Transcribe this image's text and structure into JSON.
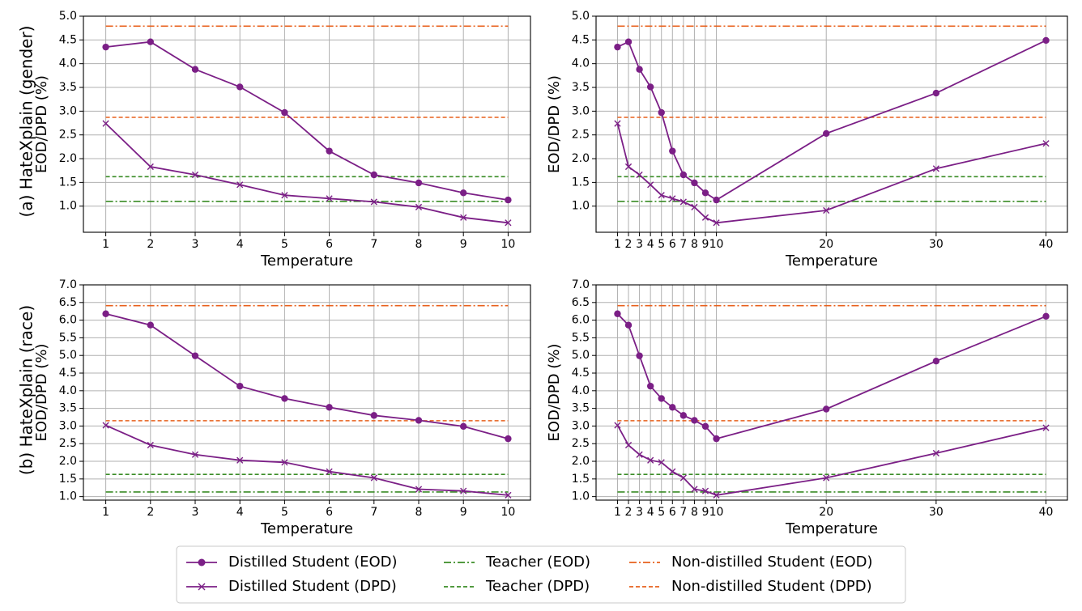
{
  "row_labels": [
    "(a) HateXplain (gender)",
    "(b) HateXplain (race)"
  ],
  "colors": {
    "student": "#7b1f86",
    "teacher": "#3a8c26",
    "nondistilled": "#e8601c"
  },
  "legend": [
    {
      "label": "Distilled Student (EOD)",
      "style": "student-eod"
    },
    {
      "label": "Distilled Student (DPD)",
      "style": "student-dpd"
    },
    {
      "label": "Teacher (EOD)",
      "style": "teacher-eod"
    },
    {
      "label": "Teacher (DPD)",
      "style": "teacher-dpd"
    },
    {
      "label": "Non-distilled Student (EOD)",
      "style": "nondistilled-eod"
    },
    {
      "label": "Non-distilled Student (DPD)",
      "style": "nondistilled-dpd"
    }
  ],
  "chart_data": [
    {
      "type": "line",
      "panel": "a-left",
      "xlabel": "Temperature",
      "ylabel": "EOD/DPD (%)",
      "xticks": [
        1,
        2,
        3,
        4,
        5,
        6,
        7,
        8,
        9,
        10
      ],
      "xlim": [
        0.5,
        10.5
      ],
      "ylim": [
        0.45,
        5.0
      ],
      "yticks": [
        1.0,
        1.5,
        2.0,
        2.5,
        3.0,
        3.5,
        4.0,
        4.5,
        5.0
      ],
      "grid": true,
      "x": [
        1,
        2,
        3,
        4,
        5,
        6,
        7,
        8,
        9,
        10
      ],
      "series": [
        {
          "name": "Distilled Student (EOD)",
          "values": [
            4.35,
            4.46,
            3.88,
            3.51,
            2.97,
            2.16,
            1.66,
            1.49,
            1.28,
            1.13
          ]
        },
        {
          "name": "Distilled Student (DPD)",
          "values": [
            2.74,
            1.83,
            1.66,
            1.45,
            1.23,
            1.16,
            1.09,
            0.98,
            0.76,
            0.65
          ]
        }
      ],
      "hlines": [
        {
          "name": "Teacher (EOD)",
          "value": 1.1
        },
        {
          "name": "Teacher (DPD)",
          "value": 1.62
        },
        {
          "name": "Non-distilled Student (EOD)",
          "value": 4.79
        },
        {
          "name": "Non-distilled Student (DPD)",
          "value": 2.87
        }
      ]
    },
    {
      "type": "line",
      "panel": "a-right",
      "xlabel": "Temperature",
      "ylabel": "EOD/DPD (%)",
      "xticks": [
        1,
        2,
        3,
        4,
        5,
        6,
        7,
        8,
        9,
        10,
        20,
        30,
        40
      ],
      "xlim": [
        -0.95,
        41.95
      ],
      "ylim": [
        0.45,
        5.0
      ],
      "yticks": [
        1.0,
        1.5,
        2.0,
        2.5,
        3.0,
        3.5,
        4.0,
        4.5,
        5.0
      ],
      "grid": true,
      "x": [
        1,
        2,
        3,
        4,
        5,
        6,
        7,
        8,
        9,
        10,
        20,
        30,
        40
      ],
      "series": [
        {
          "name": "Distilled Student (EOD)",
          "values": [
            4.35,
            4.46,
            3.88,
            3.51,
            2.97,
            2.16,
            1.66,
            1.49,
            1.28,
            1.13,
            2.53,
            3.38,
            4.49
          ]
        },
        {
          "name": "Distilled Student (DPD)",
          "values": [
            2.74,
            1.83,
            1.66,
            1.45,
            1.23,
            1.16,
            1.09,
            0.98,
            0.76,
            0.65,
            0.91,
            1.79,
            2.32
          ]
        }
      ],
      "hlines": [
        {
          "name": "Teacher (EOD)",
          "value": 1.1
        },
        {
          "name": "Teacher (DPD)",
          "value": 1.62
        },
        {
          "name": "Non-distilled Student (EOD)",
          "value": 4.79
        },
        {
          "name": "Non-distilled Student (DPD)",
          "value": 2.87
        }
      ]
    },
    {
      "type": "line",
      "panel": "b-left",
      "xlabel": "Temperature",
      "ylabel": "EOD/DPD (%)",
      "xticks": [
        1,
        2,
        3,
        4,
        5,
        6,
        7,
        8,
        9,
        10
      ],
      "xlim": [
        0.5,
        10.5
      ],
      "ylim": [
        0.9,
        7.0
      ],
      "yticks": [
        1.0,
        1.5,
        2.0,
        2.5,
        3.0,
        3.5,
        4.0,
        4.5,
        5.0,
        5.5,
        6.0,
        6.5,
        7.0
      ],
      "grid": true,
      "x": [
        1,
        2,
        3,
        4,
        5,
        6,
        7,
        8,
        9,
        10
      ],
      "series": [
        {
          "name": "Distilled Student (EOD)",
          "values": [
            6.18,
            5.86,
            4.99,
            4.13,
            3.78,
            3.53,
            3.3,
            3.16,
            2.99,
            2.64
          ]
        },
        {
          "name": "Distilled Student (DPD)",
          "values": [
            3.02,
            2.46,
            2.19,
            2.03,
            1.97,
            1.71,
            1.53,
            1.21,
            1.16,
            1.04
          ]
        }
      ],
      "hlines": [
        {
          "name": "Teacher (EOD)",
          "value": 1.13
        },
        {
          "name": "Teacher (DPD)",
          "value": 1.63
        },
        {
          "name": "Non-distilled Student (EOD)",
          "value": 6.41
        },
        {
          "name": "Non-distilled Student (DPD)",
          "value": 3.15
        }
      ]
    },
    {
      "type": "line",
      "panel": "b-right",
      "xlabel": "Temperature",
      "ylabel": "EOD/DPD (%)",
      "xticks": [
        1,
        2,
        3,
        4,
        5,
        6,
        7,
        8,
        9,
        10,
        20,
        30,
        40
      ],
      "xlim": [
        -0.95,
        41.95
      ],
      "ylim": [
        0.9,
        7.0
      ],
      "yticks": [
        1.0,
        1.5,
        2.0,
        2.5,
        3.0,
        3.5,
        4.0,
        4.5,
        5.0,
        5.5,
        6.0,
        6.5,
        7.0
      ],
      "grid": true,
      "x": [
        1,
        2,
        3,
        4,
        5,
        6,
        7,
        8,
        9,
        10,
        20,
        30,
        40
      ],
      "series": [
        {
          "name": "Distilled Student (EOD)",
          "values": [
            6.18,
            5.86,
            4.99,
            4.13,
            3.78,
            3.53,
            3.3,
            3.16,
            2.99,
            2.64,
            3.48,
            4.84,
            6.11
          ]
        },
        {
          "name": "Distilled Student (DPD)",
          "values": [
            3.02,
            2.46,
            2.19,
            2.03,
            1.97,
            1.71,
            1.53,
            1.21,
            1.16,
            1.04,
            1.53,
            2.23,
            2.95
          ]
        }
      ],
      "hlines": [
        {
          "name": "Teacher (EOD)",
          "value": 1.13
        },
        {
          "name": "Teacher (DPD)",
          "value": 1.63
        },
        {
          "name": "Non-distilled Student (EOD)",
          "value": 6.41
        },
        {
          "name": "Non-distilled Student (DPD)",
          "value": 3.15
        }
      ]
    }
  ]
}
